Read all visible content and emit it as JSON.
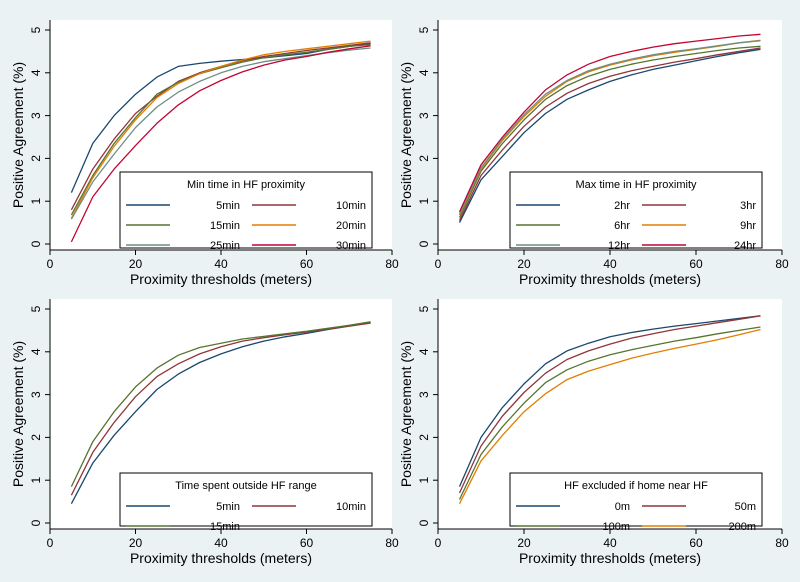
{
  "colors": {
    "background": "#eaf2f3",
    "plot_area": "#ffffff",
    "axis": "#000000",
    "legend_border": "#000000",
    "blue": "#1a476f",
    "red": "#90353b",
    "green": "#55752f",
    "orange": "#e37e00",
    "gray": "#6e8e84",
    "maroon": "#c10534"
  },
  "chart_data": [
    {
      "type": "line",
      "title": "",
      "xlabel": "Proximity thresholds (meters)",
      "ylabel": "Positive Agreement (%)",
      "xlim": [
        0,
        80
      ],
      "ylim": [
        0,
        5
      ],
      "xticks": [
        "0",
        "20",
        "40",
        "60",
        "80"
      ],
      "yticks": [
        "0",
        "1",
        "2",
        "3",
        "4",
        "5"
      ],
      "legend_title": "Min time in HF proximity",
      "legend_columns": 2,
      "legend_placement": "lower-right",
      "x": [
        5,
        10,
        15,
        20,
        25,
        30,
        35,
        40,
        45,
        50,
        55,
        60,
        65,
        70,
        75
      ],
      "series": [
        {
          "name": "5min",
          "color": "blue",
          "values": [
            1.2,
            2.35,
            3.0,
            3.5,
            3.9,
            4.15,
            4.22,
            4.27,
            4.31,
            4.35,
            4.4,
            4.45,
            4.55,
            4.62,
            4.68
          ]
        },
        {
          "name": "10min",
          "color": "red",
          "values": [
            0.8,
            1.75,
            2.45,
            3.05,
            3.45,
            3.8,
            4.0,
            4.15,
            4.28,
            4.38,
            4.45,
            4.52,
            4.58,
            4.64,
            4.7
          ]
        },
        {
          "name": "15min",
          "color": "green",
          "values": [
            0.68,
            1.6,
            2.35,
            2.95,
            3.5,
            3.78,
            3.98,
            4.12,
            4.25,
            4.35,
            4.42,
            4.48,
            4.55,
            4.62,
            4.66
          ]
        },
        {
          "name": "20min",
          "color": "orange",
          "values": [
            0.6,
            1.55,
            2.28,
            2.9,
            3.42,
            3.75,
            3.98,
            4.15,
            4.3,
            4.42,
            4.5,
            4.56,
            4.62,
            4.68,
            4.74
          ]
        },
        {
          "name": "25min",
          "color": "gray",
          "values": [
            0.58,
            1.45,
            2.1,
            2.72,
            3.2,
            3.55,
            3.8,
            4.0,
            4.15,
            4.26,
            4.33,
            4.4,
            4.47,
            4.53,
            4.58
          ]
        },
        {
          "name": "30min",
          "color": "maroon",
          "values": [
            0.05,
            1.1,
            1.75,
            2.3,
            2.82,
            3.25,
            3.58,
            3.82,
            4.02,
            4.18,
            4.3,
            4.38,
            4.48,
            4.56,
            4.63
          ]
        }
      ]
    },
    {
      "type": "line",
      "title": "",
      "xlabel": "Proximity thresholds (meters)",
      "ylabel": "Positive Agreement (%)",
      "xlim": [
        0,
        80
      ],
      "ylim": [
        0,
        5
      ],
      "xticks": [
        "0",
        "20",
        "40",
        "60",
        "80"
      ],
      "yticks": [
        "0",
        "1",
        "2",
        "3",
        "4",
        "5"
      ],
      "legend_title": "Max time in HF proximity",
      "legend_columns": 2,
      "legend_placement": "lower-right",
      "x": [
        5,
        10,
        15,
        20,
        25,
        30,
        35,
        40,
        45,
        50,
        55,
        60,
        65,
        70,
        75
      ],
      "series": [
        {
          "name": "2hr",
          "color": "blue",
          "values": [
            0.5,
            1.5,
            2.05,
            2.6,
            3.05,
            3.38,
            3.6,
            3.8,
            3.95,
            4.08,
            4.18,
            4.28,
            4.38,
            4.47,
            4.55
          ]
        },
        {
          "name": "3hr",
          "color": "red",
          "values": [
            0.55,
            1.6,
            2.2,
            2.75,
            3.2,
            3.52,
            3.75,
            3.92,
            4.05,
            4.15,
            4.25,
            4.33,
            4.42,
            4.5,
            4.58
          ]
        },
        {
          "name": "6hr",
          "color": "green",
          "values": [
            0.62,
            1.7,
            2.35,
            2.9,
            3.38,
            3.7,
            3.92,
            4.08,
            4.2,
            4.3,
            4.38,
            4.45,
            4.52,
            4.58,
            4.62
          ]
        },
        {
          "name": "9hr",
          "color": "orange",
          "values": [
            0.68,
            1.75,
            2.42,
            2.98,
            3.45,
            3.8,
            4.02,
            4.18,
            4.3,
            4.4,
            4.48,
            4.55,
            4.62,
            4.7,
            4.76
          ]
        },
        {
          "name": "12hr",
          "color": "gray",
          "values": [
            0.7,
            1.78,
            2.45,
            3.02,
            3.5,
            3.82,
            4.05,
            4.2,
            4.32,
            4.42,
            4.5,
            4.56,
            4.63,
            4.7,
            4.75
          ]
        },
        {
          "name": "24hr",
          "color": "maroon",
          "values": [
            0.75,
            1.85,
            2.5,
            3.08,
            3.6,
            3.95,
            4.2,
            4.38,
            4.5,
            4.6,
            4.68,
            4.74,
            4.8,
            4.86,
            4.9
          ]
        }
      ]
    },
    {
      "type": "line",
      "title": "",
      "xlabel": "Proximity thresholds (meters)",
      "ylabel": "Positive Agreement (%)",
      "xlim": [
        0,
        80
      ],
      "ylim": [
        0,
        5
      ],
      "xticks": [
        "0",
        "20",
        "40",
        "60",
        "80"
      ],
      "yticks": [
        "0",
        "1",
        "2",
        "3",
        "4",
        "5"
      ],
      "legend_title": "Time spent outside HF range",
      "legend_columns": 2,
      "legend_placement": "lower-right",
      "x": [
        5,
        10,
        15,
        20,
        25,
        30,
        35,
        40,
        45,
        50,
        55,
        60,
        65,
        70,
        75
      ],
      "series": [
        {
          "name": "5min",
          "color": "blue",
          "values": [
            0.45,
            1.4,
            2.05,
            2.6,
            3.12,
            3.48,
            3.75,
            3.95,
            4.12,
            4.25,
            4.35,
            4.43,
            4.52,
            4.6,
            4.68
          ]
        },
        {
          "name": "10min",
          "color": "red",
          "values": [
            0.65,
            1.65,
            2.35,
            2.95,
            3.42,
            3.72,
            3.95,
            4.12,
            4.25,
            4.33,
            4.4,
            4.46,
            4.53,
            4.6,
            4.67
          ]
        },
        {
          "name": "15min",
          "color": "green",
          "values": [
            0.85,
            1.9,
            2.6,
            3.18,
            3.62,
            3.92,
            4.1,
            4.2,
            4.3,
            4.36,
            4.42,
            4.48,
            4.55,
            4.62,
            4.7
          ]
        }
      ]
    },
    {
      "type": "line",
      "title": "",
      "xlabel": "Proximity thresholds (meters)",
      "ylabel": "Positive Agreement (%)",
      "xlim": [
        0,
        80
      ],
      "ylim": [
        0,
        5
      ],
      "xticks": [
        "0",
        "20",
        "40",
        "60",
        "80"
      ],
      "yticks": [
        "0",
        "1",
        "2",
        "3",
        "4",
        "5"
      ],
      "legend_title": "HF excluded if home near HF",
      "legend_columns": 2,
      "legend_placement": "lower-right",
      "x": [
        5,
        10,
        15,
        20,
        25,
        30,
        35,
        40,
        45,
        50,
        55,
        60,
        65,
        70,
        75
      ],
      "series": [
        {
          "name": "0m",
          "color": "blue",
          "values": [
            0.85,
            2.0,
            2.7,
            3.25,
            3.72,
            4.02,
            4.2,
            4.35,
            4.45,
            4.53,
            4.6,
            4.66,
            4.72,
            4.78,
            4.84
          ]
        },
        {
          "name": "50m",
          "color": "red",
          "values": [
            0.7,
            1.8,
            2.5,
            3.05,
            3.5,
            3.82,
            4.02,
            4.18,
            4.32,
            4.42,
            4.52,
            4.6,
            4.68,
            4.76,
            4.84
          ]
        },
        {
          "name": "100m",
          "color": "green",
          "values": [
            0.55,
            1.6,
            2.25,
            2.8,
            3.28,
            3.58,
            3.78,
            3.93,
            4.05,
            4.15,
            4.25,
            4.33,
            4.42,
            4.5,
            4.58
          ]
        },
        {
          "name": "200m",
          "color": "orange",
          "values": [
            0.45,
            1.45,
            2.05,
            2.6,
            3.02,
            3.35,
            3.55,
            3.7,
            3.85,
            3.97,
            4.08,
            4.18,
            4.28,
            4.4,
            4.52
          ]
        }
      ]
    }
  ]
}
